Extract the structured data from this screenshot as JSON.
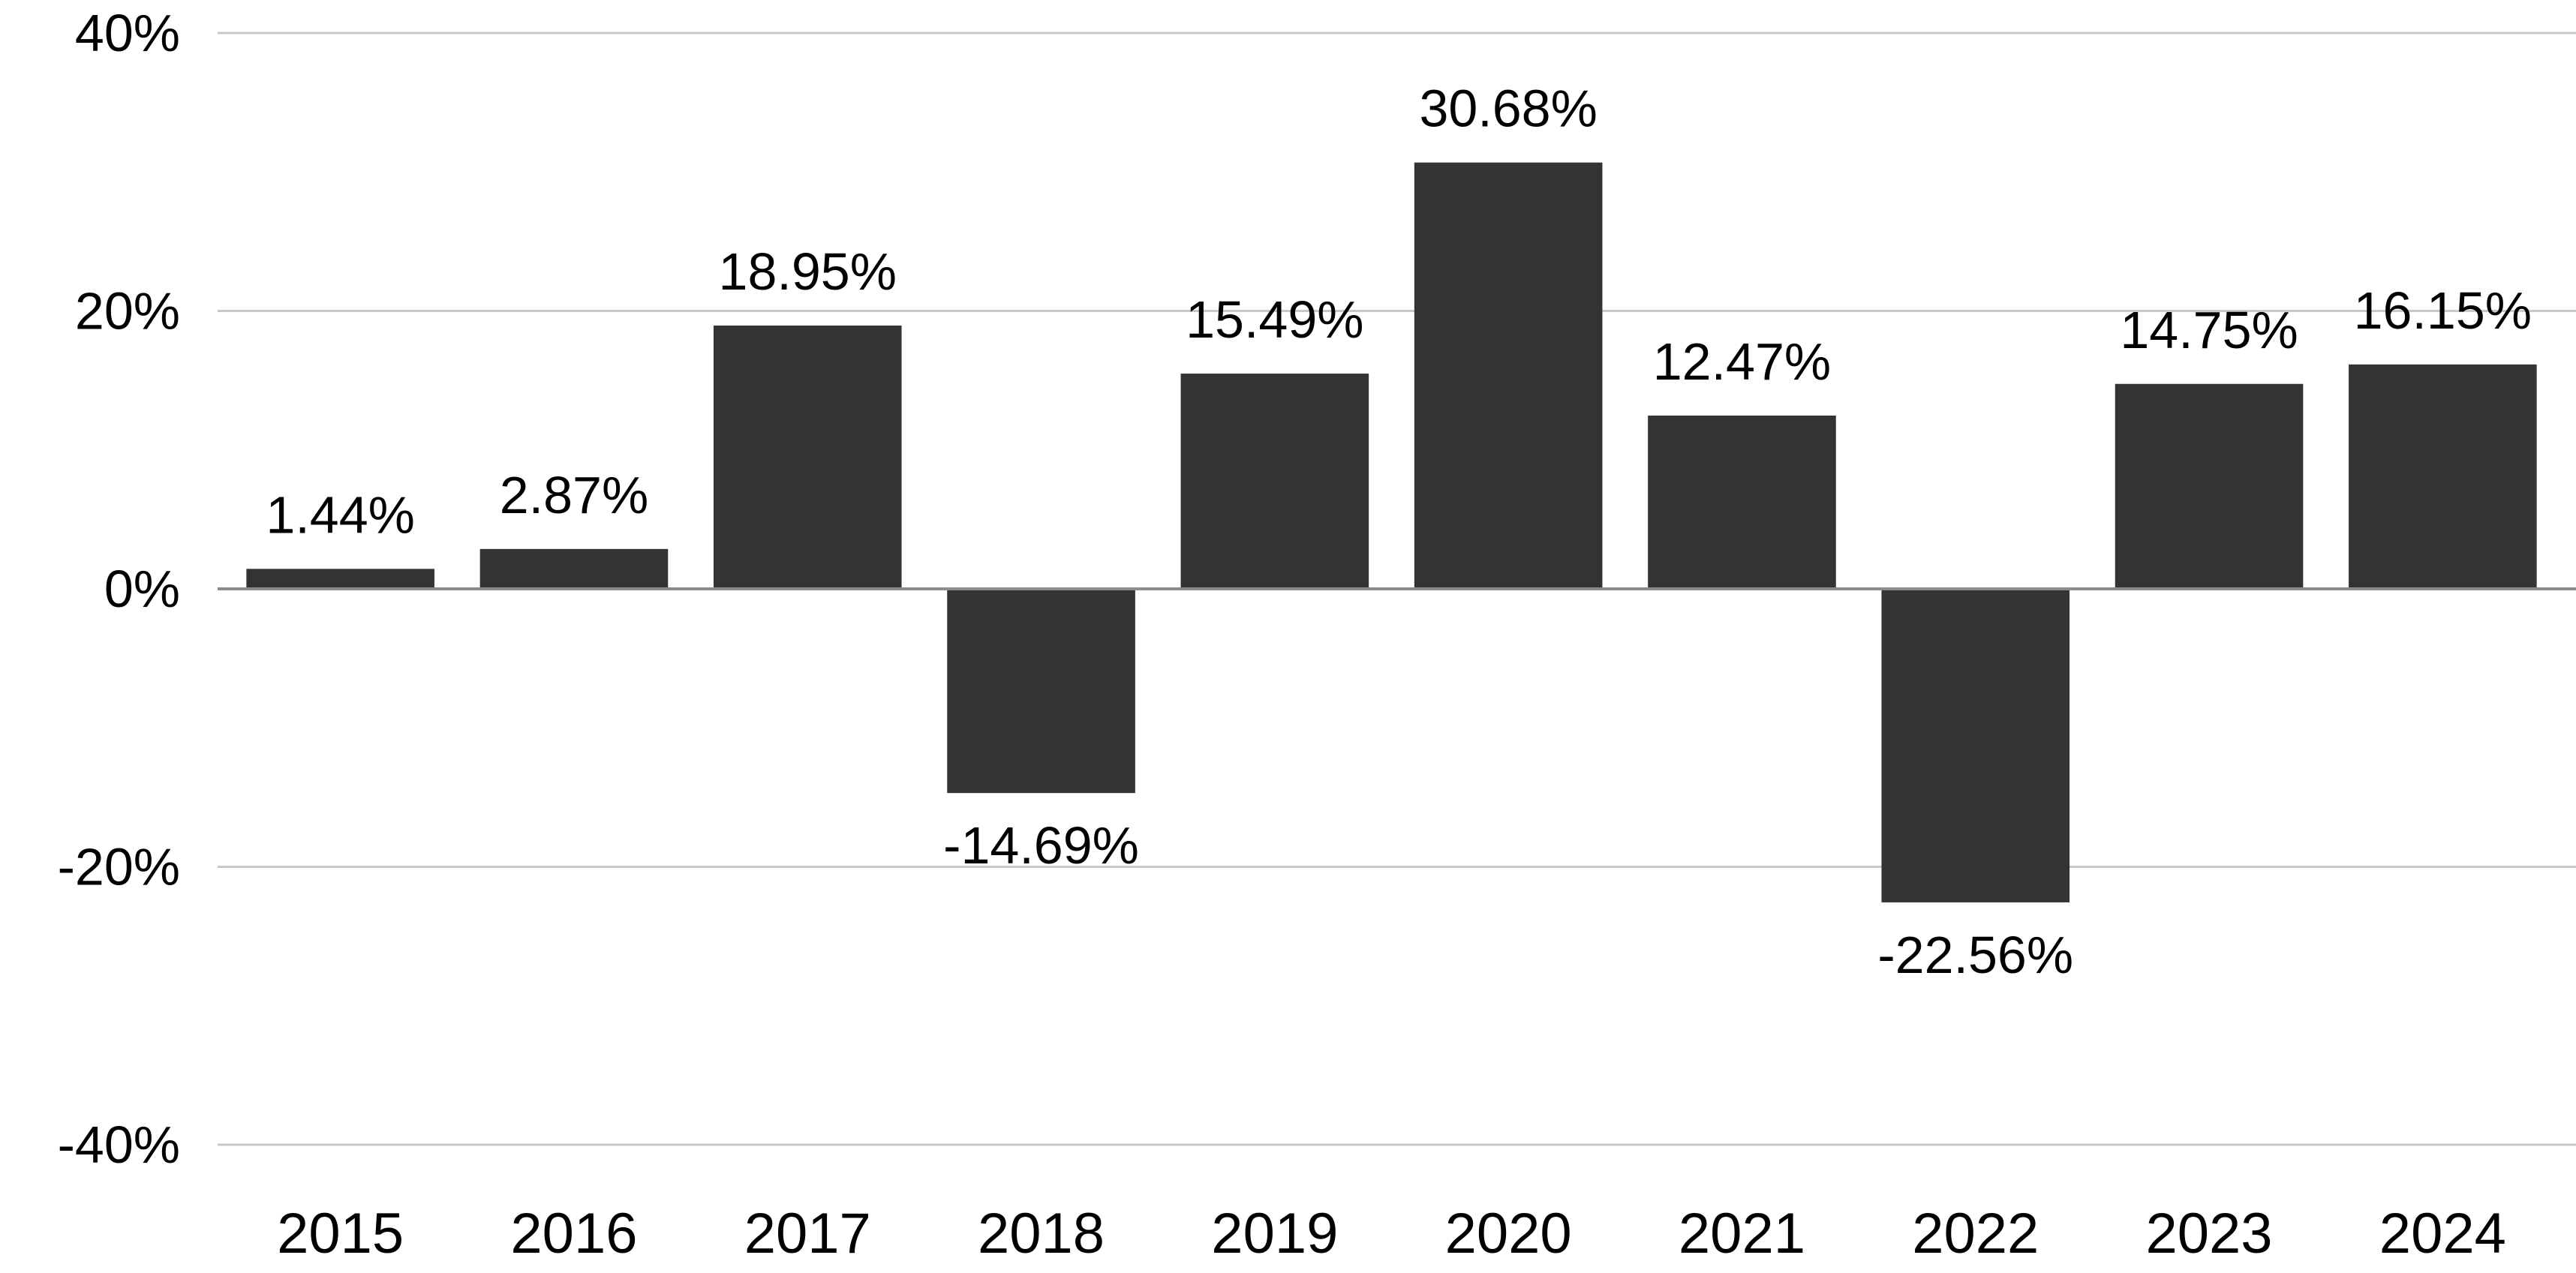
{
  "chart_data": {
    "type": "bar",
    "title": "",
    "xlabel": "",
    "ylabel": "",
    "categories": [
      "2015",
      "2016",
      "2017",
      "2018",
      "2019",
      "2020",
      "2021",
      "2022",
      "2023",
      "2024"
    ],
    "values": [
      1.44,
      2.87,
      18.95,
      -14.69,
      15.49,
      30.68,
      12.47,
      -22.56,
      14.75,
      16.15
    ],
    "value_labels": [
      "1.44%",
      "2.87%",
      "18.95%",
      "-14.69%",
      "15.49%",
      "30.68%",
      "12.47%",
      "-22.56%",
      "14.75%",
      "16.15%"
    ],
    "ylim": [
      -40,
      40
    ],
    "yticks": [
      40,
      20,
      0,
      -20,
      -40
    ],
    "ytick_labels": [
      "40%",
      "20%",
      "0%",
      "-20%",
      "-40%"
    ],
    "grid": true,
    "legend": "none",
    "bar_color": "#333333",
    "grid_color": "#c8c8c8",
    "zero_line_color": "#8c8c8c",
    "text_color": "#000000"
  }
}
